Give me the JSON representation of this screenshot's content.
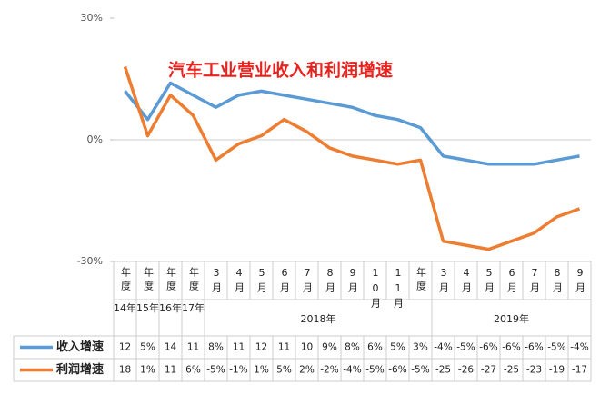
{
  "chart_data": {
    "type": "line",
    "title": "汽车工业营业收入和利润增速",
    "categories": [
      "年度",
      "年度",
      "年度",
      "年度",
      "3月",
      "4月",
      "5月",
      "6月",
      "7月",
      "8月",
      "9月",
      "10月",
      "11月",
      "年度",
      "3月",
      "4月",
      "5月",
      "6月",
      "7月",
      "8月",
      "9月"
    ],
    "groups": [
      "14年",
      "15年",
      "16年",
      "17年",
      "2018年",
      "2019年"
    ],
    "ylim": [
      -30,
      30
    ],
    "yticks": [
      {
        "value": -30,
        "label": "-30%"
      },
      {
        "value": 0,
        "label": "0%"
      },
      {
        "value": 30,
        "label": "30%"
      }
    ],
    "series": [
      {
        "name": "收入增速",
        "color": "#5b9bd5",
        "values": [
          12,
          5,
          14,
          11,
          8,
          11,
          12,
          11,
          10,
          9,
          8,
          6,
          5,
          3,
          -4,
          -5,
          -6,
          -6,
          -6,
          -5,
          -4
        ],
        "value_labels": [
          "12",
          "5%",
          "14",
          "11",
          "8%",
          "11",
          "12",
          "11",
          "10",
          "9%",
          "8%",
          "6%",
          "5%",
          "3%",
          "-4%",
          "-5%",
          "-6%",
          "-6%",
          "-6%",
          "-5%",
          "-4%"
        ]
      },
      {
        "name": "利润增速",
        "color": "#ed7d31",
        "values": [
          18,
          1,
          11,
          6,
          -5,
          -1,
          1,
          5,
          2,
          -2,
          -4,
          -5,
          -6,
          -5,
          -25,
          -26,
          -27,
          -25,
          -23,
          -19,
          -17
        ],
        "value_labels": [
          "18",
          "1%",
          "11",
          "6%",
          "-5%",
          "-1%",
          "1%",
          "5%",
          "2%",
          "-2%",
          "-4%",
          "-5%",
          "-6%",
          "-5%",
          "-25",
          "-26",
          "-27",
          "-25",
          "-23",
          "-19",
          "-17"
        ]
      }
    ]
  }
}
